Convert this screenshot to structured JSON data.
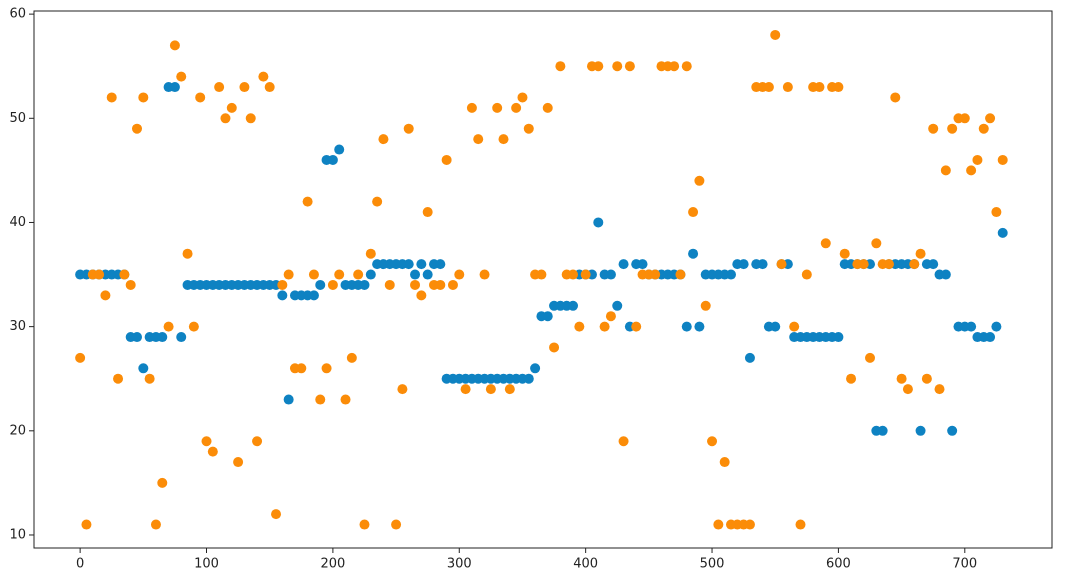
{
  "chart_data": {
    "type": "scatter",
    "x": [
      0,
      5,
      10,
      15,
      20,
      25,
      30,
      35,
      40,
      45,
      50,
      55,
      60,
      65,
      70,
      75,
      80,
      85,
      90,
      95,
      100,
      105,
      110,
      115,
      120,
      125,
      130,
      135,
      140,
      145,
      150,
      155,
      160,
      165,
      170,
      175,
      180,
      185,
      190,
      195,
      200,
      205,
      210,
      215,
      220,
      225,
      230,
      235,
      240,
      245,
      250,
      255,
      260,
      265,
      270,
      275,
      280,
      285,
      290,
      295,
      300,
      305,
      310,
      315,
      320,
      325,
      330,
      335,
      340,
      345,
      350,
      355,
      360,
      365,
      370,
      375,
      380,
      385,
      390,
      395,
      400,
      405,
      410,
      415,
      420,
      425,
      430,
      435,
      440,
      445,
      450,
      455,
      460,
      465,
      470,
      475,
      480,
      485,
      490,
      495,
      500,
      505,
      510,
      515,
      520,
      525,
      530,
      535,
      540,
      545,
      550,
      555,
      560,
      565,
      570,
      575,
      580,
      585,
      590,
      595,
      600,
      605,
      610,
      615,
      620,
      625,
      630,
      635,
      640,
      645,
      650,
      655,
      660,
      665,
      670,
      675,
      680,
      685,
      690,
      695,
      700,
      705,
      710,
      715,
      720,
      725,
      730
    ],
    "series": [
      {
        "color": "#0e82c2",
        "values": [
          35,
          35,
          35,
          35,
          35,
          35,
          35,
          35,
          29,
          29,
          26,
          29,
          29,
          29,
          53,
          53,
          29,
          34,
          34,
          34,
          34,
          34,
          34,
          34,
          34,
          34,
          34,
          34,
          34,
          34,
          34,
          34,
          33,
          23,
          33,
          33,
          33,
          33,
          34,
          46,
          46,
          47,
          34,
          34,
          34,
          34,
          35,
          36,
          36,
          36,
          36,
          36,
          36,
          35,
          36,
          35,
          36,
          36,
          25,
          25,
          25,
          25,
          25,
          25,
          25,
          25,
          25,
          25,
          25,
          25,
          25,
          25,
          26,
          31,
          31,
          32,
          32,
          32,
          32,
          35,
          35,
          35,
          40,
          35,
          35,
          32,
          36,
          30,
          36,
          36,
          35,
          35,
          35,
          35,
          35,
          35,
          30,
          37,
          30,
          35,
          35,
          35,
          35,
          35,
          36,
          36,
          27,
          36,
          36,
          30,
          30,
          36,
          36,
          29,
          29,
          29,
          29,
          29,
          29,
          29,
          29,
          36,
          36,
          36,
          36,
          36,
          20,
          20,
          36,
          36,
          36,
          36,
          36,
          20,
          36,
          36,
          35,
          35,
          20,
          30,
          30,
          30,
          29,
          29,
          29,
          30,
          39
        ]
      },
      {
        "color": "#fb8c08",
        "values": [
          27,
          11,
          35,
          35,
          33,
          52,
          25,
          35,
          34,
          49,
          52,
          25,
          11,
          15,
          30,
          57,
          54,
          37,
          30,
          52,
          19,
          18,
          53,
          50,
          51,
          17,
          53,
          50,
          19,
          54,
          53,
          12,
          34,
          35,
          26,
          26,
          42,
          35,
          23,
          26,
          34,
          35,
          23,
          27,
          35,
          11,
          37,
          42,
          48,
          34,
          11,
          24,
          49,
          34,
          33,
          41,
          34,
          34,
          46,
          34,
          35,
          24,
          51,
          48,
          35,
          24,
          51,
          48,
          24,
          51,
          52,
          49,
          35,
          35,
          51,
          28,
          55,
          35,
          35,
          30,
          35,
          55,
          55,
          30,
          31,
          55,
          19,
          55,
          30,
          35,
          35,
          35,
          55,
          55,
          55,
          35,
          55,
          41,
          44,
          32,
          19,
          11,
          17,
          11,
          11,
          11,
          11,
          53,
          53,
          53,
          58,
          36,
          53,
          30,
          11,
          35,
          53,
          53,
          38,
          53,
          53,
          37,
          25,
          36,
          36,
          27,
          38,
          36,
          36,
          52,
          25,
          24,
          36,
          37,
          25,
          49,
          24,
          45,
          49,
          50,
          50,
          45,
          46,
          49,
          50,
          41,
          46
        ]
      }
    ],
    "xlim": [
      -36.5,
      769
    ],
    "ylim": [
      8.75,
      60.3
    ],
    "xticks": [
      0,
      100,
      200,
      300,
      400,
      500,
      600,
      700
    ],
    "yticks": [
      10,
      20,
      30,
      40,
      50,
      60
    ]
  }
}
